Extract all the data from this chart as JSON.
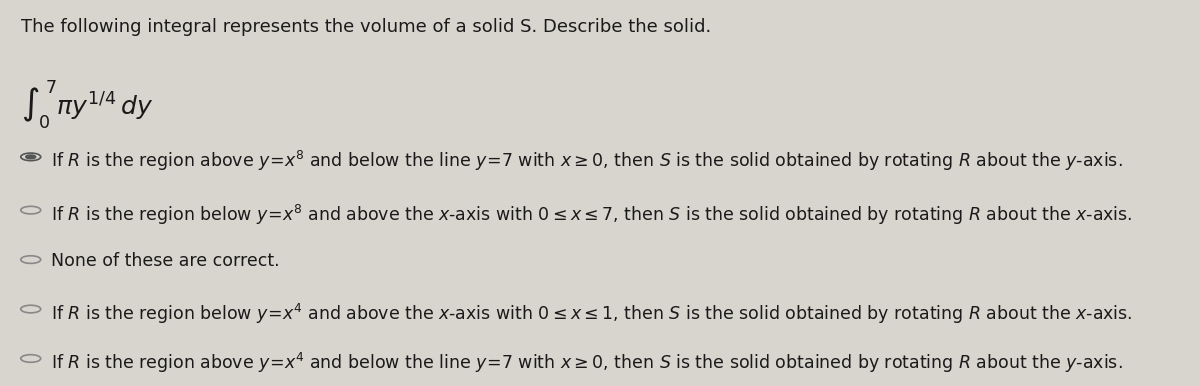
{
  "title": "The following integral represents the volume of a solid S. Describe the solid.",
  "integral_text": "$\\int_0^7 \\pi y^{1/4}\\, dy$",
  "background_color": "#d8d5cf",
  "text_color": "#1a1a1a",
  "options": [
    {
      "bullet": "radio_filled",
      "text_parts": [
        {
          "text": "If ",
          "style": "normal"
        },
        {
          "text": "R",
          "style": "italic"
        },
        {
          "text": " is the region above ",
          "style": "normal"
        },
        {
          "text": "y",
          "style": "italic"
        },
        {
          "text": "=",
          "style": "normal"
        },
        {
          "text": "x",
          "style": "italic"
        },
        {
          "text": "8",
          "style": "superscript"
        },
        {
          "text": " and below the line ",
          "style": "normal"
        },
        {
          "text": "y",
          "style": "italic"
        },
        {
          "text": "=7 with ",
          "style": "normal"
        },
        {
          "text": "x",
          "style": "italic"
        },
        {
          "text": "≥ 0, then ",
          "style": "normal"
        },
        {
          "text": "S",
          "style": "italic"
        },
        {
          "text": " is the solid obtained by rotating ",
          "style": "normal"
        },
        {
          "text": "R",
          "style": "italic"
        },
        {
          "text": " about the ",
          "style": "normal"
        },
        {
          "text": "y",
          "style": "italic"
        },
        {
          "text": "-axis.",
          "style": "normal"
        }
      ],
      "full_text": "If $R$ is the region above $y=x^8$ and below the line $y=7$ with $x\\geq 0$, then $S$ is the solid obtained by rotating $R$ about the $y$-axis.",
      "selected": true
    },
    {
      "bullet": "radio_empty",
      "full_text": "If $R$ is the region below $y=x^8$ and above the $x$-axis with $0\\leq x\\leq 7$, then $S$ is the solid obtained by rotating $R$ about the $x$-axis.",
      "selected": false
    },
    {
      "bullet": "radio_empty",
      "full_text": "None of these are correct.",
      "selected": false
    },
    {
      "bullet": "radio_empty",
      "full_text": "If $R$ is the region below $y=x^4$ and above the $x$-axis with $0\\leq x\\leq 1$, then $S$ is the solid obtained by rotating $R$ about the $x$-axis.",
      "selected": false
    },
    {
      "bullet": "radio_empty",
      "full_text": "If $R$ is the region above $y=x^4$ and below the line $y=7$ with $x\\geq 0$, then $S$ is the solid obtained by rotating $R$ about the $y$-axis.",
      "selected": false
    }
  ],
  "title_fontsize": 13,
  "option_fontsize": 12.5,
  "integral_fontsize": 18
}
